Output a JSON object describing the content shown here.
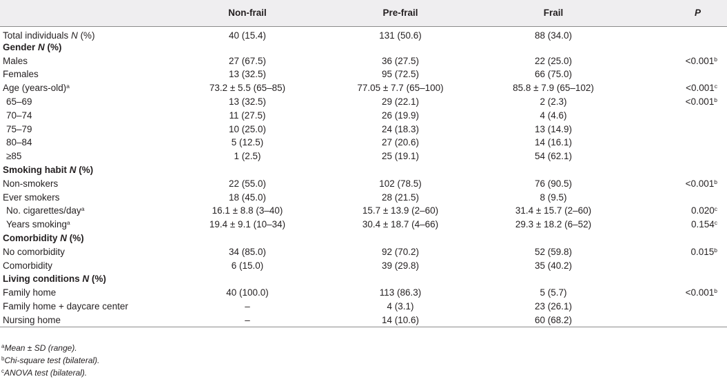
{
  "header": {
    "col0": "",
    "col1": "Non-frail",
    "col2": "Pre-frail",
    "col3": "Frail",
    "col4": "P"
  },
  "rows": [
    {
      "label": "Total individuals ",
      "label_n": "N",
      "label_suffix": " (%)",
      "c1": "40 (15.4)",
      "c2": "131 (50.6)",
      "c3": "88 (34.0)",
      "p": "",
      "p_sup": ""
    },
    {
      "section": "Gender ",
      "section_n": "N",
      "section_suffix": " (%)"
    },
    {
      "label": "Males",
      "c1": "27 (67.5)",
      "c2": "36 (27.5)",
      "c3": "22 (25.0)",
      "p": "<0.001",
      "p_sup": "b"
    },
    {
      "label": "Females",
      "c1": "13 (32.5)",
      "c2": "95 (72.5)",
      "c3": "66 (75.0)",
      "p": "",
      "p_sup": ""
    },
    {
      "label": "Age (years-old)",
      "label_sup": "a",
      "c1": "73.2 ± 5.5 (65–85)",
      "c2": "77.05 ± 7.7 (65–100)",
      "c3": "85.8 ± 7.9 (65–102)",
      "p": "<0.001",
      "p_sup": "c"
    },
    {
      "label": "65–69",
      "indent": true,
      "c1": "13 (32.5)",
      "c2": "29 (22.1)",
      "c3": "2 (2.3)",
      "p": "<0.001",
      "p_sup": "b"
    },
    {
      "label": "70–74",
      "indent": true,
      "c1": "11 (27.5)",
      "c2": "26 (19.9)",
      "c3": "4 (4.6)",
      "p": "",
      "p_sup": ""
    },
    {
      "label": "75–79",
      "indent": true,
      "c1": "10 (25.0)",
      "c2": "24 (18.3)",
      "c3": "13 (14.9)",
      "p": "",
      "p_sup": ""
    },
    {
      "label": "80–84",
      "indent": true,
      "c1": "5 (12.5)",
      "c2": "27 (20.6)",
      "c3": "14 (16.1)",
      "p": "",
      "p_sup": ""
    },
    {
      "label": "≥85",
      "indent": true,
      "c1": "1 (2.5)",
      "c2": "25 (19.1)",
      "c3": "54 (62.1)",
      "p": "",
      "p_sup": ""
    },
    {
      "section": "Smoking habit ",
      "section_n": "N",
      "section_suffix": " (%)"
    },
    {
      "label": "Non-smokers",
      "c1": "22 (55.0)",
      "c2": "102 (78.5)",
      "c3": "76 (90.5)",
      "p": "<0.001",
      "p_sup": "b"
    },
    {
      "label": "Ever smokers",
      "c1": "18 (45.0)",
      "c2": "28 (21.5)",
      "c3": "8 (9.5)",
      "p": "",
      "p_sup": ""
    },
    {
      "label": "No. cigarettes/day",
      "label_sup": "a",
      "indent": true,
      "c1": "16.1 ± 8.8 (3–40)",
      "c2": "15.7 ± 13.9 (2–60)",
      "c3": "31.4 ± 15.7 (2–60)",
      "p": "0.020",
      "p_sup": "c"
    },
    {
      "label": "Years smoking",
      "label_sup": "a",
      "indent": true,
      "c1": "19.4 ± 9.1 (10–34)",
      "c2": "30.4 ± 18.7 (4–66)",
      "c3": "29.3 ± 18.2 (6–52)",
      "p": "0.154",
      "p_sup": "c"
    },
    {
      "section": "Comorbidity ",
      "section_n": "N",
      "section_suffix": " (%)"
    },
    {
      "label": "No comorbidity",
      "c1": "34 (85.0)",
      "c2": "92 (70.2)",
      "c3": "52 (59.8)",
      "p": "0.015",
      "p_sup": "b"
    },
    {
      "label": "Comorbidity",
      "c1": "6 (15.0)",
      "c2": "39 (29.8)",
      "c3": "35 (40.2)",
      "p": "",
      "p_sup": ""
    },
    {
      "section": "Living conditions ",
      "section_n": "N",
      "section_suffix": " (%)"
    },
    {
      "label": "Family home",
      "c1": "40 (100.0)",
      "c2": "113 (86.3)",
      "c3": "5 (5.7)",
      "p": "<0.001",
      "p_sup": "b"
    },
    {
      "label": "Family home + daycare center",
      "c1": "–",
      "c2": "4 (3.1)",
      "c3": "23 (26.1)",
      "p": "",
      "p_sup": ""
    },
    {
      "label": "Nursing home",
      "c1": "–",
      "c2": "14 (10.6)",
      "c3": "60 (68.2)",
      "p": "",
      "p_sup": ""
    }
  ],
  "footnotes": [
    {
      "sup": "a",
      "text": "Mean ± SD (range)."
    },
    {
      "sup": "b",
      "text": "Chi-square test (bilateral)."
    },
    {
      "sup": "c",
      "text": "ANOVA test (bilateral)."
    }
  ]
}
